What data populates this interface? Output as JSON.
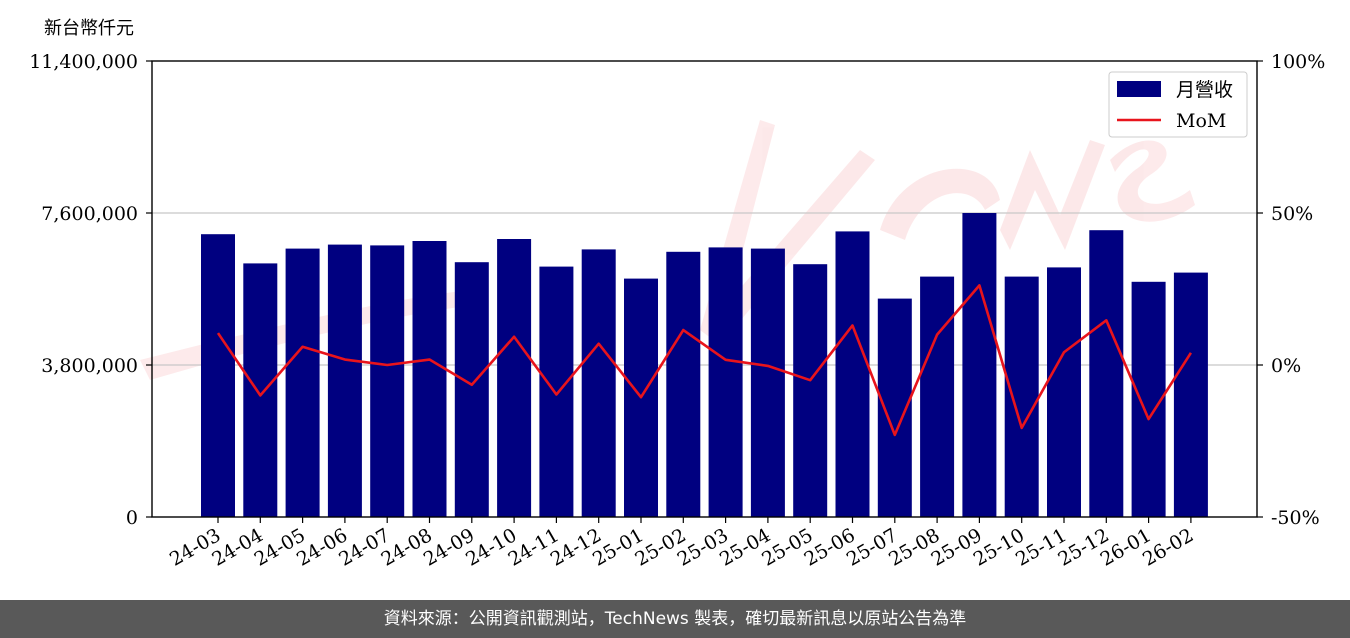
{
  "chart_data": {
    "type": "bar",
    "ylabel": "新台幣仟元",
    "ylim": [
      0,
      11400000
    ],
    "yticks": [
      "0",
      "3,800,000",
      "7,600,000",
      "11,400,000"
    ],
    "y2lim": [
      -50,
      100
    ],
    "y2ticks": [
      "-50%",
      "0%",
      "50%",
      "100%"
    ],
    "grid": true,
    "legend_position": "top-right",
    "categories": [
      "24-03",
      "24-04",
      "24-05",
      "24-06",
      "24-07",
      "24-08",
      "24-09",
      "24-10",
      "24-11",
      "24-12",
      "25-01",
      "25-02",
      "25-03",
      "25-04",
      "25-05",
      "25-06",
      "25-07",
      "25-08",
      "25-09",
      "25-10",
      "25-11",
      "25-12",
      "26-01",
      "26-02"
    ],
    "series": [
      {
        "name": "月營收",
        "type": "bar",
        "axis": "left",
        "color": "#000080",
        "values": [
          7070000,
          6340000,
          6710000,
          6810000,
          6790000,
          6900000,
          6370000,
          6950000,
          6260000,
          6690000,
          5960000,
          6630000,
          6740000,
          6710000,
          6320000,
          7140000,
          5460000,
          6010000,
          7600000,
          6010000,
          6240000,
          7170000,
          5880000,
          6110000
        ]
      },
      {
        "name": "MoM",
        "type": "line",
        "axis": "right",
        "color": "#e8141c",
        "values": [
          10.5,
          -10,
          6,
          1.8,
          0,
          1.8,
          -6.5,
          9.3,
          -9.7,
          7,
          -10.6,
          11.5,
          1.7,
          -0.3,
          -5,
          13,
          -23,
          10,
          26.2,
          -20.7,
          4.2,
          14.7,
          -17.8,
          4
        ]
      }
    ]
  },
  "footer": {
    "text": "資料來源：公開資訊觀測站，TechNews 製表，確切最新訊息以原站公告為準"
  }
}
